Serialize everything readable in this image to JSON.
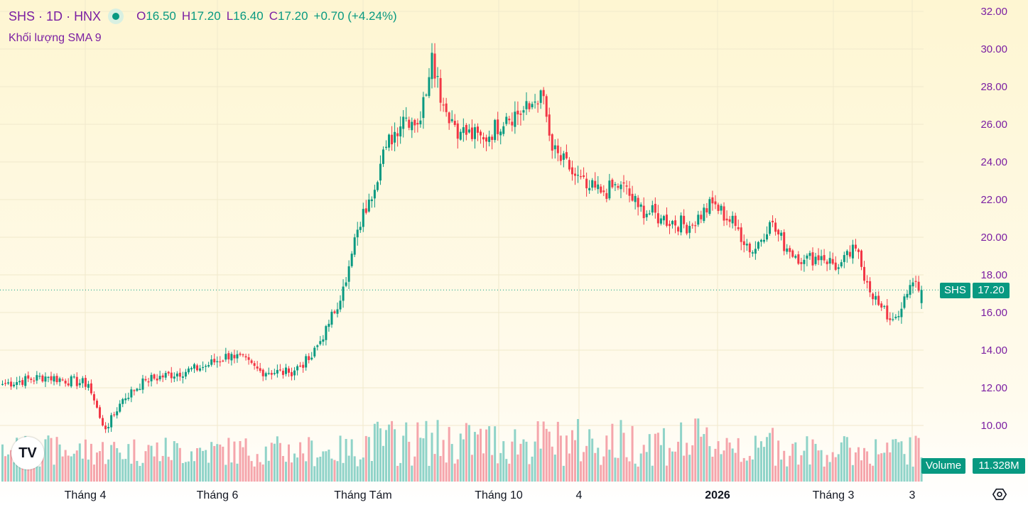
{
  "header": {
    "symbol": "SHS",
    "interval": "1D",
    "exchange": "HNX",
    "open_label": "O",
    "open": "16.50",
    "high_label": "H",
    "high": "17.20",
    "low_label": "L",
    "low": "16.40",
    "close_label": "C",
    "close": "17.20",
    "change": "+0.70 (+4.24%)",
    "volume_indicator": "Khối lượng SMA 9"
  },
  "price_tag": {
    "symbol": "SHS",
    "value": "17.20"
  },
  "volume_tag": {
    "label": "Volume",
    "value": "11.328M"
  },
  "logo": {
    "text": "TV"
  },
  "colors": {
    "up": "#089981",
    "down": "#f23645",
    "up_volume": "#8fd3c8",
    "down_volume": "#f5a5ab",
    "axis_text": "#7b1fa2"
  },
  "chart_data": {
    "type": "candlestick",
    "title": "SHS · 1D · HNX",
    "y_axis": {
      "ylim": [
        9.0,
        32.5
      ],
      "ticks": [
        "32.00",
        "30.00",
        "28.00",
        "26.00",
        "24.00",
        "22.00",
        "20.00",
        "18.00",
        "16.00",
        "14.00",
        "12.00",
        "10.00"
      ]
    },
    "x_axis": {
      "ticks": [
        "Tháng 4",
        "Tháng 6",
        "Tháng Tám",
        "Tháng 10",
        "4",
        "2026",
        "Tháng 3",
        "3"
      ]
    },
    "last_price": 17.2,
    "grid": true,
    "anchors": [
      {
        "i": 0,
        "c": 12.2
      },
      {
        "i": 15,
        "c": 12.6
      },
      {
        "i": 30,
        "c": 12.2
      },
      {
        "i": 34,
        "c": 10.4
      },
      {
        "i": 36,
        "c": 9.8
      },
      {
        "i": 42,
        "c": 11.4
      },
      {
        "i": 50,
        "c": 12.4
      },
      {
        "i": 70,
        "c": 13.1
      },
      {
        "i": 80,
        "c": 13.8
      },
      {
        "i": 90,
        "c": 12.9
      },
      {
        "i": 100,
        "c": 12.8
      },
      {
        "i": 108,
        "c": 13.6
      },
      {
        "i": 114,
        "c": 15.4
      },
      {
        "i": 120,
        "c": 17.6
      },
      {
        "i": 124,
        "c": 20.4
      },
      {
        "i": 128,
        "c": 22.0
      },
      {
        "i": 134,
        "c": 24.8
      },
      {
        "i": 140,
        "c": 26.4
      },
      {
        "i": 146,
        "c": 26.2
      },
      {
        "i": 150,
        "c": 29.8
      },
      {
        "i": 154,
        "c": 27.0
      },
      {
        "i": 160,
        "c": 25.6
      },
      {
        "i": 168,
        "c": 25.2
      },
      {
        "i": 176,
        "c": 26.4
      },
      {
        "i": 184,
        "c": 26.8
      },
      {
        "i": 188,
        "c": 27.8
      },
      {
        "i": 192,
        "c": 24.6
      },
      {
        "i": 198,
        "c": 23.6
      },
      {
        "i": 204,
        "c": 22.6
      },
      {
        "i": 210,
        "c": 22.4
      },
      {
        "i": 216,
        "c": 22.8
      },
      {
        "i": 222,
        "c": 21.6
      },
      {
        "i": 230,
        "c": 21.0
      },
      {
        "i": 240,
        "c": 20.6
      },
      {
        "i": 248,
        "c": 21.8
      },
      {
        "i": 256,
        "c": 20.6
      },
      {
        "i": 262,
        "c": 19.2
      },
      {
        "i": 268,
        "c": 20.8
      },
      {
        "i": 274,
        "c": 19.4
      },
      {
        "i": 280,
        "c": 18.8
      },
      {
        "i": 286,
        "c": 19.0
      },
      {
        "i": 292,
        "c": 18.4
      },
      {
        "i": 298,
        "c": 19.4
      },
      {
        "i": 302,
        "c": 17.6
      },
      {
        "i": 306,
        "c": 16.4
      },
      {
        "i": 310,
        "c": 15.6
      },
      {
        "i": 314,
        "c": 16.2
      },
      {
        "i": 318,
        "c": 17.6
      },
      {
        "i": 321,
        "c": 17.2
      }
    ],
    "volume": {
      "label": "Volume",
      "last": "11.328M"
    }
  }
}
